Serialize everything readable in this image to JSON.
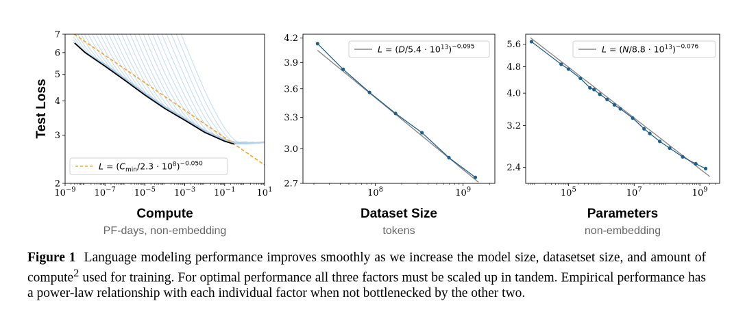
{
  "chart_data": [
    {
      "type": "line",
      "ylabel": "Test Loss",
      "xlabel": "Compute",
      "xsublabel": "PF-days, non-embedding",
      "xscale": "log",
      "yscale": "log",
      "xlim": [
        1e-09,
        10
      ],
      "ylim": [
        2,
        7
      ],
      "x_ticks": [
        {
          "value": 1e-09,
          "base": "10",
          "exp": "−9"
        },
        {
          "value": 1e-07,
          "base": "10",
          "exp": "−7"
        },
        {
          "value": 1e-05,
          "base": "10",
          "exp": "−5"
        },
        {
          "value": 0.001,
          "base": "10",
          "exp": "−3"
        },
        {
          "value": 0.1,
          "base": "10",
          "exp": "−1"
        },
        {
          "value": 10,
          "base": "10",
          "exp": "1"
        }
      ],
      "y_ticks": [
        {
          "value": 2,
          "label": "2"
        },
        {
          "value": 3,
          "label": "3"
        },
        {
          "value": 4,
          "label": "4"
        },
        {
          "value": 5,
          "label": "5"
        },
        {
          "value": 6,
          "label": "6"
        },
        {
          "value": 7,
          "label": "7"
        }
      ],
      "legend": {
        "placement": "lower-left",
        "entries": [
          {
            "label": "L = (C_min/2.3 · 10^8)^−0.050",
            "parts": [
              "L",
              " = (",
              "C",
              "min",
              "/2.3 · 10",
              "8",
              ")",
              "−0.050"
            ],
            "color": "#f5a623",
            "style": "dashed"
          }
        ]
      },
      "fit": {
        "coefficient": 230000000.0,
        "exponent": -0.05,
        "x_range": [
          1e-09,
          10
        ]
      },
      "frontier": {
        "color": "#000000",
        "x": [
          3e-09,
          1e-08,
          1e-07,
          1e-06,
          1e-05,
          0.0001,
          0.001,
          0.01,
          0.1,
          0.3
        ],
        "y": [
          6.5,
          6.0,
          5.35,
          4.75,
          4.2,
          3.75,
          3.4,
          3.07,
          2.85,
          2.78
        ]
      },
      "runs": {
        "color": "#9ec5e8",
        "count": 30,
        "description_free": true
      }
    },
    {
      "type": "line",
      "xlabel": "Dataset Size",
      "xsublabel": "tokens",
      "xscale": "log",
      "yscale": "log",
      "xlim": [
        15000000.0,
        2300000000.0
      ],
      "ylim": [
        2.7,
        4.25
      ],
      "x_ticks": [
        {
          "value": 100000000.0,
          "base": "10",
          "exp": "8"
        },
        {
          "value": 1000000000.0,
          "base": "10",
          "exp": "9"
        }
      ],
      "y_ticks": [
        {
          "value": 2.7,
          "label": "2.7"
        },
        {
          "value": 3.0,
          "label": "3.0"
        },
        {
          "value": 3.3,
          "label": "3.3"
        },
        {
          "value": 3.6,
          "label": "3.6"
        },
        {
          "value": 3.9,
          "label": "3.9"
        },
        {
          "value": 4.2,
          "label": "4.2"
        }
      ],
      "legend": {
        "placement": "top-right",
        "entries": [
          {
            "label": "L = (D/5.4 · 10^13)^−0.095",
            "parts": [
              "L",
              " = (",
              "D",
              "/5.4 · 10",
              "13",
              ")",
              "−0.095"
            ],
            "color": "#888888",
            "style": "solid"
          }
        ]
      },
      "fit": {
        "coefficient": 54000000000000.0,
        "exponent": -0.095,
        "x_range": [
          22000000.0,
          1500000000.0
        ]
      },
      "series": [
        {
          "color": "#1f5f8b",
          "x": [
            22000000.0,
            43000000.0,
            86000000.0,
            170000000.0,
            340000000.0,
            690000000.0,
            1380000000.0
          ],
          "y": [
            4.13,
            3.82,
            3.56,
            3.34,
            3.15,
            2.92,
            2.75
          ]
        }
      ]
    },
    {
      "type": "line",
      "xlabel": "Parameters",
      "xsublabel": "non-embedding",
      "xscale": "log",
      "yscale": "log",
      "xlim": [
        5000.0,
        4000000000.0
      ],
      "ylim": [
        2.15,
        6.0
      ],
      "x_ticks": [
        {
          "value": 100000.0,
          "base": "10",
          "exp": "5"
        },
        {
          "value": 10000000.0,
          "base": "10",
          "exp": "7"
        },
        {
          "value": 1000000000.0,
          "base": "10",
          "exp": "9"
        }
      ],
      "y_ticks": [
        {
          "value": 2.4,
          "label": "2.4"
        },
        {
          "value": 3.2,
          "label": "3.2"
        },
        {
          "value": 4.0,
          "label": "4.0"
        },
        {
          "value": 4.8,
          "label": "4.8"
        },
        {
          "value": 5.6,
          "label": "5.6"
        }
      ],
      "legend": {
        "placement": "top-right",
        "entries": [
          {
            "label": "L = (N/8.8 · 10^13)^−0.076",
            "parts": [
              "L",
              " = (",
              "N",
              "/8.8 · 10",
              "13",
              ")",
              "−0.076"
            ],
            "color": "#888888",
            "style": "solid"
          }
        ]
      },
      "fit": {
        "coefficient": 88000000000000.0,
        "exponent": -0.076,
        "x_range": [
          7000.0,
          2000000000.0
        ]
      },
      "series": [
        {
          "color": "#1f5f8b",
          "x": [
            7500.0,
            60000.0,
            100000.0,
            230000.0,
            450000.0,
            600000.0,
            900000.0,
            1500000.0,
            2500000.0,
            3800000.0,
            9000000.0,
            20000000.0,
            30000000.0,
            60000000.0,
            120000000.0,
            300000000.0,
            750000000.0,
            1500000000.0
          ],
          "y": [
            5.7,
            4.88,
            4.72,
            4.43,
            4.15,
            4.1,
            3.97,
            3.83,
            3.69,
            3.59,
            3.37,
            3.13,
            3.03,
            2.87,
            2.74,
            2.58,
            2.46,
            2.38
          ]
        }
      ]
    }
  ],
  "caption": {
    "label": "Figure 1",
    "text_before": "Language modeling performance improves smoothly as we increase the model size, datasetset size, and amount of compute",
    "footnote_mark": "2",
    "text_after": " used for training. For optimal performance all three factors must be scaled up in tandem. Empirical performance has a power-law relationship with each individual factor when not bottlenecked by the other two."
  }
}
